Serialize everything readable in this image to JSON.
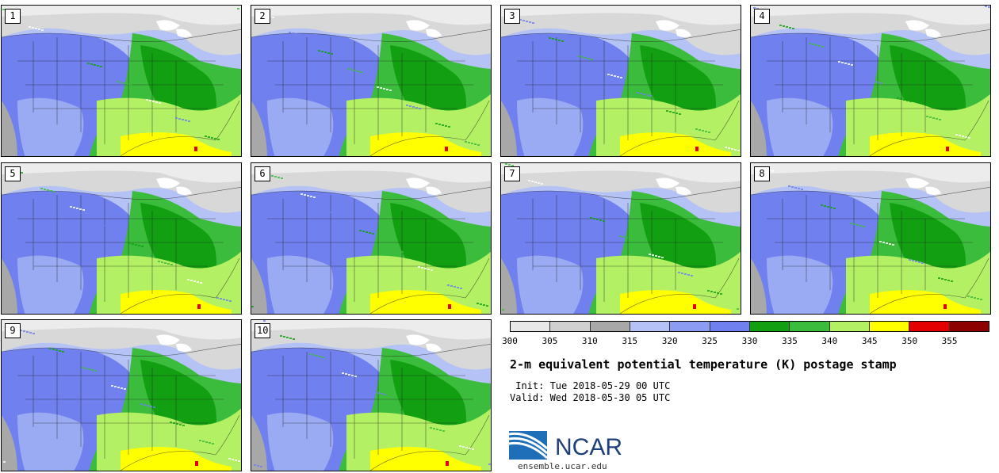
{
  "panels": [
    {
      "label": "1"
    },
    {
      "label": "2"
    },
    {
      "label": "3"
    },
    {
      "label": "4"
    },
    {
      "label": "5"
    },
    {
      "label": "6"
    },
    {
      "label": "7"
    },
    {
      "label": "8"
    },
    {
      "label": "9"
    },
    {
      "label": "10"
    }
  ],
  "colorbar": {
    "colors": [
      "#e8e8e8",
      "#d0d0d0",
      "#a8a8a8",
      "#b4c2f5",
      "#8c9cf2",
      "#7080ee",
      "#12a012",
      "#3cbc3c",
      "#b4f064",
      "#ffff00",
      "#e40000",
      "#8c0000"
    ],
    "labels": [
      "300",
      "305",
      "310",
      "315",
      "320",
      "325",
      "330",
      "335",
      "340",
      "345",
      "350",
      "355"
    ]
  },
  "title": "2-m equivalent potential temperature (K) postage stamp",
  "init": " Init: Tue 2018-05-29 00 UTC",
  "valid": "Valid: Wed 2018-05-30 05 UTC",
  "logo": {
    "text": "NCAR"
  },
  "website": "ensemble.ucar.edu"
}
